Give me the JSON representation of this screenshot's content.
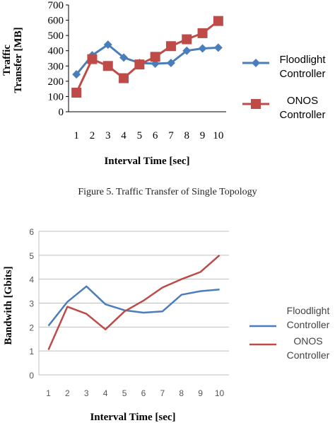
{
  "caption": "Figure 5. Traffic Transfer of Single Topology",
  "chart_data": [
    {
      "type": "line",
      "xlabel": "Interval Time [sec]",
      "ylabel_lines": [
        "Traffic",
        "Transfer [MB]"
      ],
      "ylim": [
        0,
        700
      ],
      "yticks": [
        "0",
        "100",
        "200",
        "300",
        "400",
        "500",
        "600",
        "700"
      ],
      "categories": [
        "1",
        "2",
        "3",
        "4",
        "5",
        "6",
        "7",
        "8",
        "9",
        "10"
      ],
      "grid": false,
      "legend_position": "right",
      "series": [
        {
          "name_lines": [
            "Floodlight",
            "Controller"
          ],
          "color": "#4a7ebb",
          "marker": "diamond",
          "values": [
            245,
            370,
            440,
            355,
            320,
            315,
            320,
            400,
            415,
            420
          ]
        },
        {
          "name_lines": [
            "ONOS",
            "Controller"
          ],
          "color": "#be4b48",
          "marker": "square",
          "values": [
            125,
            345,
            300,
            220,
            310,
            360,
            430,
            475,
            515,
            595
          ]
        }
      ]
    },
    {
      "type": "line",
      "xlabel": "Interval Time [sec]",
      "ylabel": "Bandwith [Gbits]",
      "ylim": [
        0,
        6
      ],
      "yticks": [
        "0",
        "1",
        "2",
        "3",
        "4",
        "5",
        "6"
      ],
      "categories": [
        "1",
        "2",
        "3",
        "4",
        "5",
        "6",
        "7",
        "8",
        "9",
        "10"
      ],
      "grid": true,
      "legend_position": "right",
      "series": [
        {
          "name_lines": [
            "Floodlight",
            "Controller"
          ],
          "color": "#4a7ebb",
          "marker": "none",
          "values": [
            2.05,
            3.05,
            3.7,
            2.95,
            2.7,
            2.6,
            2.65,
            3.35,
            3.5,
            3.57
          ]
        },
        {
          "name_lines": [
            "ONOS",
            "Controller"
          ],
          "color": "#be4b48",
          "marker": "none",
          "values": [
            1.05,
            2.85,
            2.55,
            1.9,
            2.65,
            3.1,
            3.65,
            4.0,
            4.3,
            5.0
          ]
        }
      ]
    }
  ]
}
